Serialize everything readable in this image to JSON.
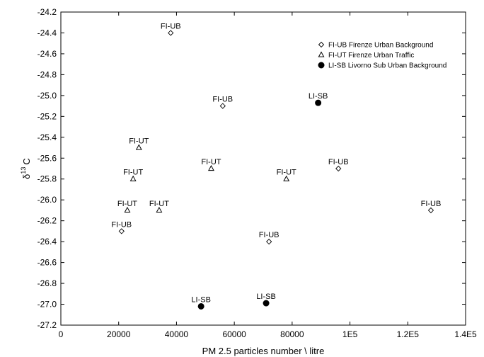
{
  "chart_data": {
    "type": "scatter",
    "title": "",
    "xlabel": "PM 2.5 particles number \\ litre",
    "ylabel_main": "δ",
    "ylabel_sup": "13",
    "ylabel_tail": "C",
    "xlim": [
      0,
      140000
    ],
    "ylim": [
      -27.2,
      -24.2
    ],
    "x_ticks": [
      0,
      20000,
      40000,
      60000,
      80000,
      100000,
      120000,
      140000
    ],
    "x_tick_labels": [
      "0",
      "20000",
      "40000",
      "60000",
      "80000",
      "1E5",
      "1.2E5",
      "1.4E5"
    ],
    "y_ticks": [
      -24.2,
      -24.4,
      -24.6,
      -24.8,
      -25.0,
      -25.2,
      -25.4,
      -25.6,
      -25.8,
      -26.0,
      -26.2,
      -26.4,
      -26.6,
      -26.8,
      -27.0,
      -27.2
    ],
    "y_tick_labels": [
      "-24.2",
      "-24.4",
      "-24.6",
      "-24.8",
      "-25.0",
      "-25.2",
      "-25.4",
      "-25.6",
      "-25.8",
      "-26.0",
      "-26.2",
      "-26.4",
      "-26.6",
      "-26.8",
      "-27.0",
      "-27.2"
    ],
    "grid": false,
    "legend_position": "top-right",
    "series": [
      {
        "name": "FI-UB Firenze Urban Background",
        "marker": "diamond",
        "point_label": "FI-UB",
        "points": [
          {
            "x": 38000,
            "y": -24.4
          },
          {
            "x": 56000,
            "y": -25.1
          },
          {
            "x": 96000,
            "y": -25.7
          },
          {
            "x": 128000,
            "y": -26.1
          },
          {
            "x": 21000,
            "y": -26.3
          },
          {
            "x": 72000,
            "y": -26.4
          }
        ]
      },
      {
        "name": "FI-UT Firenze Urban Traffic",
        "marker": "triangle",
        "point_label": "FI-UT",
        "points": [
          {
            "x": 27000,
            "y": -25.5
          },
          {
            "x": 52000,
            "y": -25.7
          },
          {
            "x": 25000,
            "y": -25.8
          },
          {
            "x": 78000,
            "y": -25.8
          },
          {
            "x": 23000,
            "y": -26.1
          },
          {
            "x": 34000,
            "y": -26.1
          }
        ]
      },
      {
        "name": "LI-SB Livorno Sub Urban Background",
        "marker": "circle",
        "point_label": "LI-SB",
        "points": [
          {
            "x": 89000,
            "y": -25.07
          },
          {
            "x": 48500,
            "y": -27.02
          },
          {
            "x": 71000,
            "y": -26.99
          }
        ]
      }
    ]
  }
}
